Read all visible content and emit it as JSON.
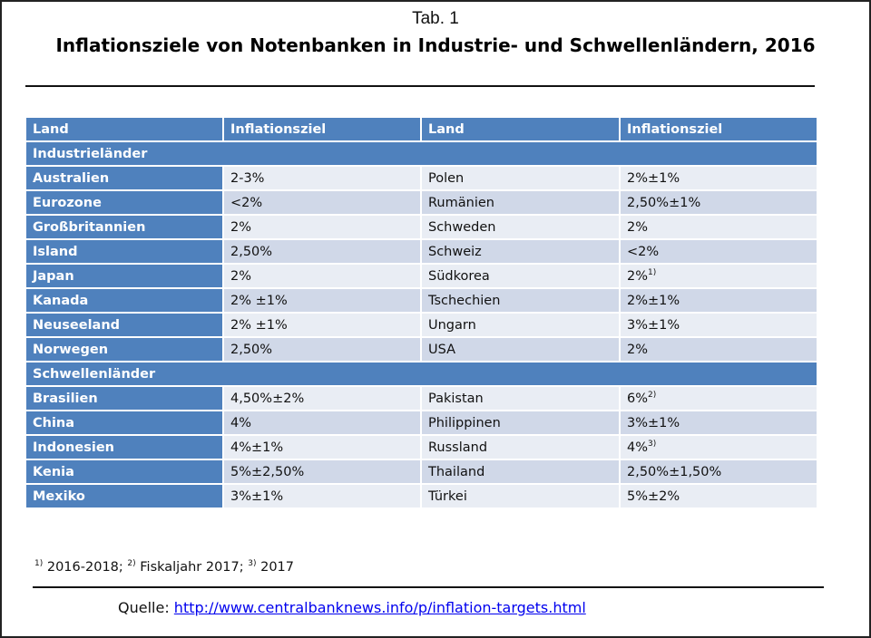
{
  "tab_label": "Tab. 1",
  "title": "Inflationsziele von Notenbanken in Industrie- und Schwellenländern, 2016",
  "headers": [
    "Land",
    "Inflationsziel",
    "Land",
    "Inflationsziel"
  ],
  "groups": [
    {
      "name": "Industrieländer",
      "rows": [
        {
          "land1": "Australien",
          "ziel1": "2-3%",
          "sup1": "",
          "land2": "Polen",
          "ziel2": "2%±1%",
          "sup2": ""
        },
        {
          "land1": "Eurozone",
          "ziel1": "<2%",
          "sup1": "",
          "land2": "Rumänien",
          "ziel2": "2,50%±1%",
          "sup2": ""
        },
        {
          "land1": "Großbritannien",
          "ziel1": "2%",
          "sup1": "",
          "land2": "Schweden",
          "ziel2": "2%",
          "sup2": ""
        },
        {
          "land1": "Island",
          "ziel1": "2,50%",
          "sup1": "",
          "land2": "Schweiz",
          "ziel2": "<2%",
          "sup2": ""
        },
        {
          "land1": "Japan",
          "ziel1": "2%",
          "sup1": "",
          "land2": "Südkorea",
          "ziel2": "2%",
          "sup2": "1)"
        },
        {
          "land1": "Kanada",
          "ziel1": "2% ±1%",
          "sup1": "",
          "land2": "Tschechien",
          "ziel2": "2%±1%",
          "sup2": ""
        },
        {
          "land1": "Neuseeland",
          "ziel1": "2% ±1%",
          "sup1": "",
          "land2": "Ungarn",
          "ziel2": "3%±1%",
          "sup2": ""
        },
        {
          "land1": "Norwegen",
          "ziel1": "2,50%",
          "sup1": "",
          "land2": "USA",
          "ziel2": "2%",
          "sup2": ""
        }
      ]
    },
    {
      "name": "Schwellenländer",
      "rows": [
        {
          "land1": "Brasilien",
          "ziel1": "4,50%±2%",
          "sup1": "",
          "land2": "Pakistan",
          "ziel2": "6%",
          "sup2": "2)"
        },
        {
          "land1": "China",
          "ziel1": "4%",
          "sup1": "",
          "land2": "Philippinen",
          "ziel2": "3%±1%",
          "sup2": ""
        },
        {
          "land1": "Indonesien",
          "ziel1": "4%±1%",
          "sup1": "",
          "land2": "Russland",
          "ziel2": "4%",
          "sup2": "3)"
        },
        {
          "land1": "Kenia",
          "ziel1": "5%±2,50%",
          "sup1": "",
          "land2": "Thailand",
          "ziel2": "2,50%±1,50%",
          "sup2": ""
        },
        {
          "land1": "Mexiko",
          "ziel1": "3%±1%",
          "sup1": "",
          "land2": "Türkei",
          "ziel2": "5%±2%",
          "sup2": ""
        }
      ]
    }
  ],
  "footnotes": [
    {
      "mark": "1)",
      "text": " 2016-2018; "
    },
    {
      "mark": "2)",
      "text": " Fiskaljahr 2017; "
    },
    {
      "mark": "3)",
      "text": " 2017"
    }
  ],
  "source": {
    "label": "Quelle: ",
    "url": "http://www.centralbanknews.info/p/inflation-targets.html"
  },
  "colors": {
    "header_blue": "#4f81bd",
    "row_light": "#e9edf4",
    "row_dark": "#d0d8e8"
  }
}
